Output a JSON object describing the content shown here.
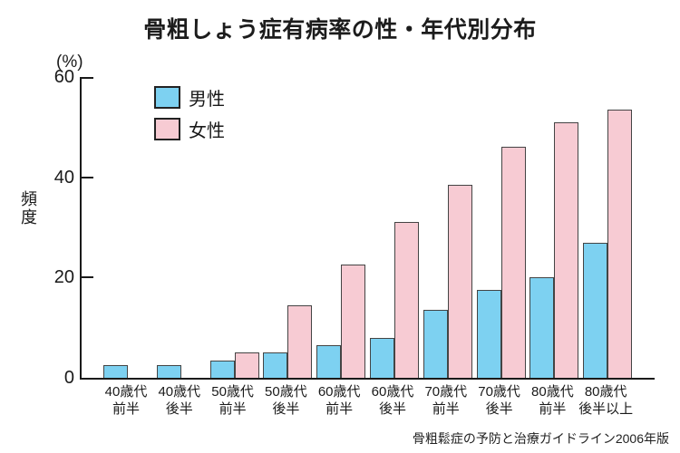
{
  "title": "骨粗しょう症有病率の性・年代別分布",
  "y_axis": {
    "unit_label": "(%)",
    "axis_label": "頻度"
  },
  "source": "骨粗鬆症の予防と治療ガイドライン2006年版",
  "chart_data": {
    "type": "bar",
    "title": "骨粗しょう症有病率の性・年代別分布",
    "ylabel": "頻度",
    "y_unit": "(%)",
    "ylim": [
      0,
      60
    ],
    "yticks": [
      0,
      20,
      40,
      60
    ],
    "grid": false,
    "legend_position": "top-left-inside",
    "categories": [
      "40歳代前半",
      "40歳代後半",
      "50歳代前半",
      "50歳代後半",
      "60歳代前半",
      "60歳代後半",
      "70歳代前半",
      "70歳代後半",
      "80歳代前半",
      "80歳代後半以上"
    ],
    "category_lines": [
      [
        "40歳代",
        "前半"
      ],
      [
        "40歳代",
        "後半"
      ],
      [
        "50歳代",
        "前半"
      ],
      [
        "50歳代",
        "後半"
      ],
      [
        "60歳代",
        "前半"
      ],
      [
        "60歳代",
        "後半"
      ],
      [
        "70歳代",
        "前半"
      ],
      [
        "70歳代",
        "後半"
      ],
      [
        "80歳代",
        "前半"
      ],
      [
        "80歳代",
        "後半以上"
      ]
    ],
    "series": [
      {
        "name": "男性",
        "color": "#7dd1f1",
        "values": [
          2.5,
          2.5,
          3.5,
          5,
          6.5,
          8,
          13.5,
          17.5,
          20,
          27
        ]
      },
      {
        "name": "女性",
        "color": "#f7cbd3",
        "values": [
          0,
          0,
          5,
          14.5,
          22.5,
          31,
          38.5,
          46,
          51,
          53.5
        ]
      }
    ],
    "bar_border_color": "#444444",
    "axis_color": "#1a1a1a"
  }
}
